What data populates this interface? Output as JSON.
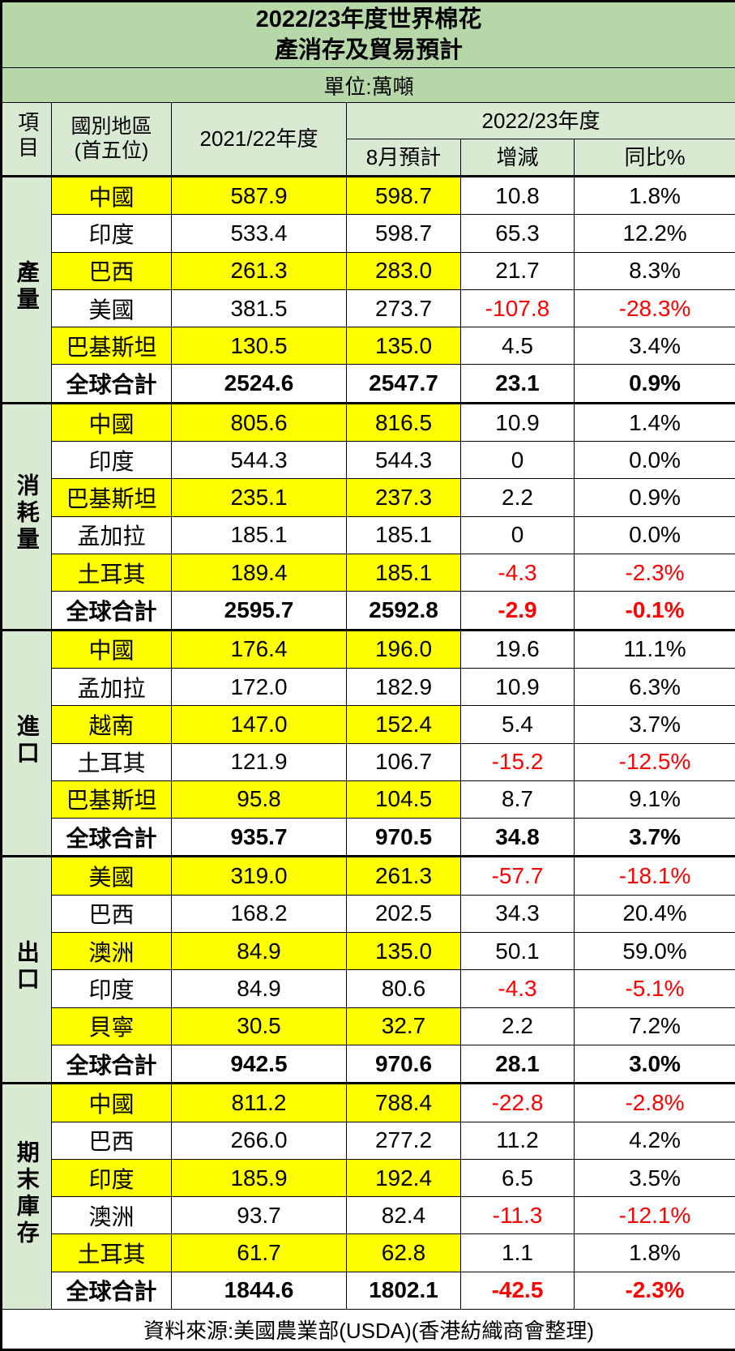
{
  "title": {
    "line1": "2022/23年度世界棉花",
    "line2": "產消存及貿易預計"
  },
  "unit_label": "單位:萬噸",
  "header": {
    "item": "項目",
    "region_line1": "國別地區",
    "region_line2": "(首五位)",
    "prev_year": "2021/22年度",
    "cur_year": "2022/23年度",
    "aug_forecast": "8月預計",
    "change": "增減",
    "yoy": "同比%"
  },
  "sections": [
    {
      "key": "production",
      "label": "產量",
      "rows": [
        {
          "name": "中國",
          "prev": "587.9",
          "aug": "598.7",
          "chg": "10.8",
          "yoy": "1.8%"
        },
        {
          "name": "印度",
          "prev": "533.4",
          "aug": "598.7",
          "chg": "65.3",
          "yoy": "12.2%"
        },
        {
          "name": "巴西",
          "prev": "261.3",
          "aug": "283.0",
          "chg": "21.7",
          "yoy": "8.3%"
        },
        {
          "name": "美國",
          "prev": "381.5",
          "aug": "273.7",
          "chg": "-107.8",
          "yoy": "-28.3%"
        },
        {
          "name": "巴基斯坦",
          "prev": "130.5",
          "aug": "135.0",
          "chg": "4.5",
          "yoy": "3.4%"
        },
        {
          "name": "全球合計",
          "prev": "2524.6",
          "aug": "2547.7",
          "chg": "23.1",
          "yoy": "0.9%"
        }
      ]
    },
    {
      "key": "consumption",
      "label": "消耗量",
      "rows": [
        {
          "name": "中國",
          "prev": "805.6",
          "aug": "816.5",
          "chg": "10.9",
          "yoy": "1.4%"
        },
        {
          "name": "印度",
          "prev": "544.3",
          "aug": "544.3",
          "chg": "0",
          "yoy": "0.0%"
        },
        {
          "name": "巴基斯坦",
          "prev": "235.1",
          "aug": "237.3",
          "chg": "2.2",
          "yoy": "0.9%"
        },
        {
          "name": "孟加拉",
          "prev": "185.1",
          "aug": "185.1",
          "chg": "0",
          "yoy": "0.0%"
        },
        {
          "name": "土耳其",
          "prev": "189.4",
          "aug": "185.1",
          "chg": "-4.3",
          "yoy": "-2.3%"
        },
        {
          "name": "全球合計",
          "prev": "2595.7",
          "aug": "2592.8",
          "chg": "-2.9",
          "yoy": "-0.1%"
        }
      ]
    },
    {
      "key": "imports",
      "label": "進口",
      "rows": [
        {
          "name": "中國",
          "prev": "176.4",
          "aug": "196.0",
          "chg": "19.6",
          "yoy": "11.1%"
        },
        {
          "name": "孟加拉",
          "prev": "172.0",
          "aug": "182.9",
          "chg": "10.9",
          "yoy": "6.3%"
        },
        {
          "name": "越南",
          "prev": "147.0",
          "aug": "152.4",
          "chg": "5.4",
          "yoy": "3.7%"
        },
        {
          "name": "土耳其",
          "prev": "121.9",
          "aug": "106.7",
          "chg": "-15.2",
          "yoy": "-12.5%"
        },
        {
          "name": "巴基斯坦",
          "prev": "95.8",
          "aug": "104.5",
          "chg": "8.7",
          "yoy": "9.1%"
        },
        {
          "name": "全球合計",
          "prev": "935.7",
          "aug": "970.5",
          "chg": "34.8",
          "yoy": "3.7%"
        }
      ]
    },
    {
      "key": "exports",
      "label": "出口",
      "rows": [
        {
          "name": "美國",
          "prev": "319.0",
          "aug": "261.3",
          "chg": "-57.7",
          "yoy": "-18.1%"
        },
        {
          "name": "巴西",
          "prev": "168.2",
          "aug": "202.5",
          "chg": "34.3",
          "yoy": "20.4%"
        },
        {
          "name": "澳洲",
          "prev": "84.9",
          "aug": "135.0",
          "chg": "50.1",
          "yoy": "59.0%"
        },
        {
          "name": "印度",
          "prev": "84.9",
          "aug": "80.6",
          "chg": "-4.3",
          "yoy": "-5.1%"
        },
        {
          "name": "貝寧",
          "prev": "30.5",
          "aug": "32.7",
          "chg": "2.2",
          "yoy": "7.2%"
        },
        {
          "name": "全球合計",
          "prev": "942.5",
          "aug": "970.6",
          "chg": "28.1",
          "yoy": "3.0%"
        }
      ]
    },
    {
      "key": "ending-stocks",
      "label": "期末庫存",
      "rows": [
        {
          "name": "中國",
          "prev": "811.2",
          "aug": "788.4",
          "chg": "-22.8",
          "yoy": "-2.8%"
        },
        {
          "name": "巴西",
          "prev": "266.0",
          "aug": "277.2",
          "chg": "11.2",
          "yoy": "4.2%"
        },
        {
          "name": "印度",
          "prev": "185.9",
          "aug": "192.4",
          "chg": "6.5",
          "yoy": "3.5%"
        },
        {
          "name": "澳洲",
          "prev": "93.7",
          "aug": "82.4",
          "chg": "-11.3",
          "yoy": "-12.1%"
        },
        {
          "name": "土耳其",
          "prev": "61.7",
          "aug": "62.8",
          "chg": "1.1",
          "yoy": "1.8%"
        },
        {
          "name": "全球合計",
          "prev": "1844.6",
          "aug": "1802.1",
          "chg": "-42.5",
          "yoy": "-2.3%"
        }
      ]
    }
  ],
  "footer": "資料來源:美國農業部(USDA)(香港紡織商會整理)",
  "colors": {
    "title_green": "#b6d7a8",
    "header_green": "#d9ead3",
    "highlight_yellow": "#ffff00",
    "negative_red": "#ff0000",
    "border_black": "#000000"
  }
}
